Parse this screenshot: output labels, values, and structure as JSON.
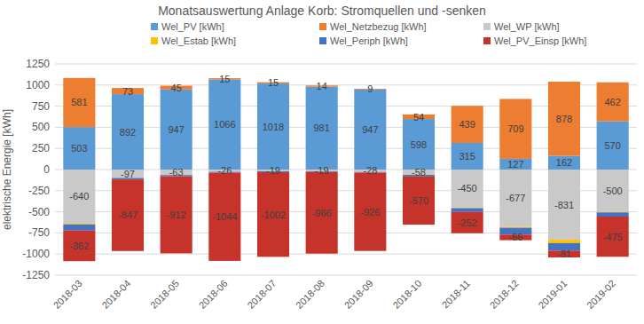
{
  "chart_data": {
    "type": "bar",
    "title": "Monatsauswertung Anlage Korb: Stromquellen und -senken",
    "y_label": "elektrische Energie [kWh]",
    "categories": [
      "2018-03",
      "2018-04",
      "2018-05",
      "2018-06",
      "2018-07",
      "2018-08",
      "2018-09",
      "2018-10",
      "2018-11",
      "2018-12",
      "2019-01",
      "2019-02"
    ],
    "series": [
      {
        "name": "Wel_PV [kWh]",
        "color": "#5b9bd5",
        "data_labels": true,
        "values": [
          503,
          892,
          947,
          1066,
          1018,
          981,
          947,
          598,
          315,
          127,
          162,
          570
        ]
      },
      {
        "name": "Wel_Netzbezug [kWh]",
        "color": "#ed7d31",
        "data_labels": true,
        "values": [
          581,
          73,
          45,
          15,
          15,
          14,
          9,
          54,
          439,
          709,
          878,
          462
        ]
      },
      {
        "name": "Wel_WP [kWh]",
        "color": "#c9c9c9",
        "data_labels": true,
        "values": [
          -640,
          -97,
          -63,
          -26,
          -19,
          -19,
          -28,
          -58,
          -450,
          -677,
          -831,
          -500
        ]
      },
      {
        "name": "Wel_Estab [kWh]",
        "color": "#ffc000",
        "data_labels": false,
        "values": [
          -10,
          -3,
          -2,
          -1,
          -1,
          -1,
          -1,
          -4,
          -7,
          -12,
          -40,
          -7
        ]
      },
      {
        "name": "Wel_Periph [kWh]",
        "color": "#4472c4",
        "data_labels": false,
        "values": [
          -72,
          -17,
          -15,
          -10,
          -11,
          -9,
          -8,
          -20,
          -45,
          -81,
          -88,
          -50
        ]
      },
      {
        "name": "Wel_PV_Einsp [kWh]",
        "color": "#c5332b",
        "data_labels": true,
        "values": [
          -362,
          -847,
          -912,
          -1044,
          -1002,
          -966,
          -926,
          -570,
          -252,
          -66,
          -81,
          -475
        ]
      }
    ],
    "stacked": true,
    "ylim": [
      -1250,
      1250
    ],
    "yticks": [
      -1250,
      -1000,
      -750,
      -500,
      -250,
      0,
      250,
      500,
      750,
      1000,
      1250
    ],
    "grid": true,
    "legend": "top"
  }
}
